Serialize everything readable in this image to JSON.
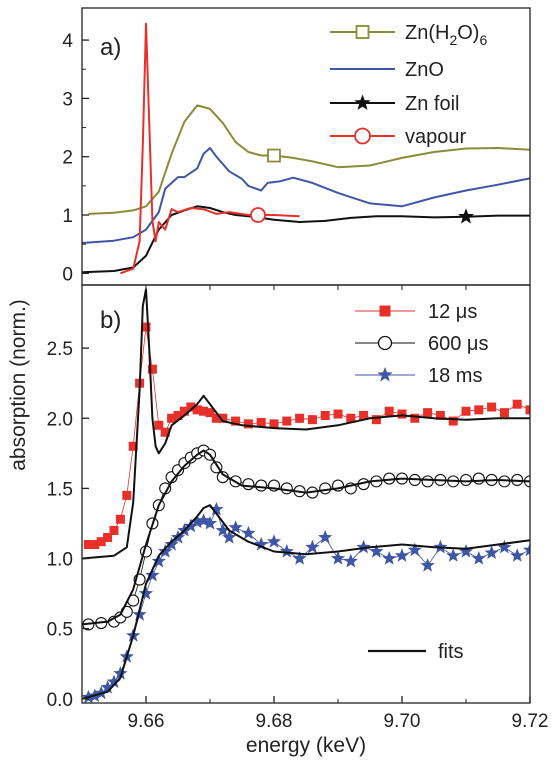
{
  "chart_data": [
    {
      "panel_label": "a)",
      "type": "line",
      "xlim": [
        9.65,
        9.72
      ],
      "ylim": [
        -0.2,
        4.55
      ],
      "y_ticks": [
        0,
        1,
        2,
        3,
        4
      ],
      "y_tick_labels": [
        "0",
        "1",
        "2",
        "3",
        "4"
      ],
      "legend_position": "top-right",
      "series": [
        {
          "name": "Zn(H2O)6",
          "name_main": "Zn(H",
          "name_sub1": "2",
          "name_mid": "O)",
          "name_sub2": "6",
          "color": "#8b8b3a",
          "marker": "open-square",
          "marker_x": 9.68,
          "x": [
            9.651,
            9.655,
            9.658,
            9.66,
            9.662,
            9.664,
            9.666,
            9.668,
            9.67,
            9.672,
            9.674,
            9.676,
            9.678,
            9.68,
            9.683,
            9.686,
            9.69,
            9.695,
            9.7,
            9.705,
            9.71,
            9.715,
            9.72
          ],
          "y": [
            1.02,
            1.04,
            1.08,
            1.15,
            1.4,
            2.05,
            2.6,
            2.88,
            2.82,
            2.58,
            2.25,
            2.08,
            2.02,
            2.02,
            1.98,
            1.92,
            1.82,
            1.85,
            1.98,
            2.08,
            2.14,
            2.15,
            2.12
          ]
        },
        {
          "name": "ZnO",
          "color": "#3f56a8",
          "marker": "none",
          "x": [
            9.65,
            9.655,
            9.658,
            9.66,
            9.662,
            9.663,
            9.665,
            9.666,
            9.668,
            9.669,
            9.67,
            9.671,
            9.673,
            9.675,
            9.676,
            9.678,
            9.679,
            9.681,
            9.683,
            9.686,
            9.69,
            9.695,
            9.7,
            9.705,
            9.71,
            9.715,
            9.72
          ],
          "y": [
            0.52,
            0.56,
            0.62,
            0.75,
            1.05,
            1.45,
            1.65,
            1.65,
            1.8,
            2.05,
            2.15,
            2.0,
            1.75,
            1.62,
            1.5,
            1.42,
            1.55,
            1.58,
            1.64,
            1.55,
            1.38,
            1.2,
            1.15,
            1.3,
            1.42,
            1.52,
            1.63
          ]
        },
        {
          "name": "Zn foil",
          "color": "#111111",
          "marker": "filled-star",
          "marker_x": 9.71,
          "x": [
            9.65,
            9.655,
            9.658,
            9.66,
            9.662,
            9.664,
            9.666,
            9.668,
            9.67,
            9.672,
            9.674,
            9.676,
            9.678,
            9.68,
            9.684,
            9.688,
            9.692,
            9.696,
            9.7,
            9.705,
            9.71,
            9.715,
            9.72
          ],
          "y": [
            0.02,
            0.04,
            0.1,
            0.3,
            0.75,
            1.0,
            1.08,
            1.15,
            1.12,
            1.05,
            1.0,
            0.98,
            0.95,
            0.92,
            0.88,
            0.9,
            0.95,
            0.98,
            0.98,
            0.96,
            0.97,
            0.99,
            0.99
          ]
        },
        {
          "name": "vapour",
          "color": "#e8302b",
          "marker": "open-circle",
          "marker_x": 9.6775,
          "x": [
            9.656,
            9.658,
            9.659,
            9.6595,
            9.66,
            9.6605,
            9.661,
            9.6615,
            9.662,
            9.663,
            9.664,
            9.665,
            9.667,
            9.669,
            9.671,
            9.673,
            9.676,
            9.68,
            9.684
          ],
          "y": [
            0.0,
            0.08,
            0.55,
            2.2,
            4.28,
            2.6,
            0.9,
            0.55,
            0.88,
            0.75,
            1.1,
            1.05,
            1.12,
            1.1,
            1.02,
            1.05,
            1.0,
            1.0,
            0.98
          ]
        }
      ]
    },
    {
      "panel_label": "b)",
      "type": "scatter",
      "xlabel": "energy (keV)",
      "ylabel": "absorption (norm.)",
      "xlim": [
        9.65,
        9.72
      ],
      "ylim": [
        -0.03,
        2.95
      ],
      "x_ticks": [
        9.66,
        9.68,
        9.7,
        9.72
      ],
      "x_tick_labels": [
        "9.66",
        "9.68",
        "9.70",
        "9.72"
      ],
      "y_ticks": [
        0.0,
        0.5,
        1.0,
        1.5,
        2.0,
        2.5
      ],
      "y_tick_labels": [
        "0.0",
        "0.5",
        "1.0",
        "1.5",
        "2.0",
        "2.5"
      ],
      "legend_position": "top-right",
      "fits_label": "fits",
      "series": [
        {
          "name": "12 μs",
          "color": "#e8302b",
          "marker": "filled-square",
          "x": [
            9.651,
            9.652,
            9.653,
            9.654,
            9.655,
            9.656,
            9.657,
            9.658,
            9.659,
            9.66,
            9.661,
            9.662,
            9.663,
            9.664,
            9.665,
            9.666,
            9.667,
            9.668,
            9.669,
            9.67,
            9.671,
            9.672,
            9.674,
            9.676,
            9.678,
            9.68,
            9.682,
            9.684,
            9.686,
            9.688,
            9.69,
            9.692,
            9.694,
            9.696,
            9.698,
            9.7,
            9.702,
            9.704,
            9.706,
            9.708,
            9.71,
            9.712,
            9.714,
            9.716,
            9.718,
            9.72
          ],
          "y": [
            1.1,
            1.1,
            1.12,
            1.15,
            1.2,
            1.28,
            1.45,
            1.8,
            2.25,
            2.65,
            2.35,
            1.95,
            1.9,
            2.0,
            2.02,
            2.05,
            2.08,
            2.06,
            2.05,
            2.04,
            2.0,
            2.0,
            1.98,
            1.96,
            1.97,
            1.96,
            1.98,
            2.0,
            1.99,
            2.02,
            2.03,
            2.0,
            2.02,
            1.99,
            2.05,
            2.03,
            2.0,
            2.04,
            2.02,
            1.98,
            2.05,
            2.06,
            2.08,
            2.04,
            2.1,
            2.06
          ]
        },
        {
          "name": "600 μs",
          "color": "#111111",
          "marker": "open-circle",
          "x": [
            9.651,
            9.653,
            9.655,
            9.656,
            9.657,
            9.658,
            9.659,
            9.66,
            9.661,
            9.662,
            9.663,
            9.664,
            9.665,
            9.666,
            9.667,
            9.668,
            9.669,
            9.67,
            9.671,
            9.672,
            9.674,
            9.676,
            9.678,
            9.68,
            9.682,
            9.684,
            9.686,
            9.688,
            9.69,
            9.692,
            9.694,
            9.696,
            9.698,
            9.7,
            9.702,
            9.704,
            9.706,
            9.708,
            9.71,
            9.712,
            9.714,
            9.716,
            9.718,
            9.72
          ],
          "y": [
            0.53,
            0.54,
            0.55,
            0.58,
            0.62,
            0.7,
            0.85,
            1.05,
            1.25,
            1.38,
            1.5,
            1.58,
            1.63,
            1.68,
            1.72,
            1.75,
            1.77,
            1.74,
            1.65,
            1.58,
            1.55,
            1.53,
            1.52,
            1.52,
            1.5,
            1.48,
            1.47,
            1.5,
            1.52,
            1.5,
            1.53,
            1.55,
            1.57,
            1.57,
            1.56,
            1.55,
            1.56,
            1.55,
            1.56,
            1.57,
            1.56,
            1.55,
            1.56,
            1.55
          ]
        },
        {
          "name": "18 ms",
          "color": "#3f56a8",
          "marker": "filled-star",
          "x": [
            9.651,
            9.652,
            9.653,
            9.654,
            9.655,
            9.656,
            9.657,
            9.658,
            9.659,
            9.66,
            9.661,
            9.662,
            9.663,
            9.664,
            9.665,
            9.666,
            9.667,
            9.668,
            9.669,
            9.67,
            9.671,
            9.672,
            9.673,
            9.674,
            9.676,
            9.678,
            9.68,
            9.682,
            9.684,
            9.686,
            9.688,
            9.69,
            9.692,
            9.694,
            9.696,
            9.698,
            9.7,
            9.702,
            9.704,
            9.706,
            9.708,
            9.71,
            9.712,
            9.714,
            9.716,
            9.718,
            9.72
          ],
          "y": [
            0.01,
            0.02,
            0.04,
            0.08,
            0.12,
            0.18,
            0.3,
            0.45,
            0.6,
            0.75,
            0.88,
            0.98,
            1.05,
            1.1,
            1.15,
            1.2,
            1.23,
            1.26,
            1.27,
            1.25,
            1.35,
            1.2,
            1.15,
            1.22,
            1.18,
            1.1,
            1.12,
            1.05,
            1.0,
            1.08,
            1.15,
            1.0,
            0.98,
            1.08,
            1.05,
            1.0,
            1.02,
            1.06,
            0.95,
            1.08,
            1.02,
            1.05,
            1.0,
            1.04,
            1.08,
            1.02,
            1.06
          ]
        }
      ],
      "fits": [
        {
          "series": "12 μs",
          "color": "#111111",
          "x": [
            9.65,
            9.655,
            9.657,
            9.658,
            9.659,
            9.6595,
            9.66,
            9.6605,
            9.661,
            9.6615,
            9.662,
            9.663,
            9.664,
            9.666,
            9.668,
            9.669,
            9.67,
            9.672,
            9.675,
            9.68,
            9.685,
            9.69,
            9.695,
            9.7,
            9.705,
            9.71,
            9.715,
            9.72
          ],
          "y": [
            1.0,
            1.02,
            1.08,
            1.4,
            2.2,
            2.8,
            2.92,
            2.5,
            2.0,
            1.8,
            1.75,
            1.82,
            1.95,
            2.02,
            2.1,
            2.16,
            2.1,
            1.98,
            1.95,
            1.93,
            1.92,
            1.95,
            2.0,
            2.02,
            2.0,
            1.99,
            2.0,
            2.0
          ]
        },
        {
          "series": "600 μs",
          "color": "#111111",
          "x": [
            9.65,
            9.654,
            9.656,
            9.658,
            9.66,
            9.662,
            9.664,
            9.666,
            9.668,
            9.669,
            9.67,
            9.672,
            9.675,
            9.68,
            9.685,
            9.69,
            9.695,
            9.7,
            9.705,
            9.71,
            9.715,
            9.72
          ],
          "y": [
            0.53,
            0.55,
            0.6,
            0.78,
            1.1,
            1.38,
            1.55,
            1.66,
            1.74,
            1.77,
            1.74,
            1.6,
            1.52,
            1.5,
            1.47,
            1.5,
            1.55,
            1.57,
            1.56,
            1.55,
            1.56,
            1.55
          ]
        },
        {
          "series": "18 ms",
          "color": "#111111",
          "x": [
            9.65,
            9.654,
            9.656,
            9.658,
            9.66,
            9.662,
            9.664,
            9.666,
            9.668,
            9.669,
            9.67,
            9.671,
            9.673,
            9.676,
            9.68,
            9.685,
            9.69,
            9.695,
            9.7,
            9.705,
            9.71,
            9.715,
            9.72
          ],
          "y": [
            0.0,
            0.05,
            0.15,
            0.45,
            0.82,
            1.02,
            1.12,
            1.2,
            1.3,
            1.36,
            1.38,
            1.32,
            1.2,
            1.12,
            1.05,
            1.03,
            1.05,
            1.08,
            1.1,
            1.08,
            1.07,
            1.1,
            1.13
          ]
        }
      ]
    }
  ]
}
